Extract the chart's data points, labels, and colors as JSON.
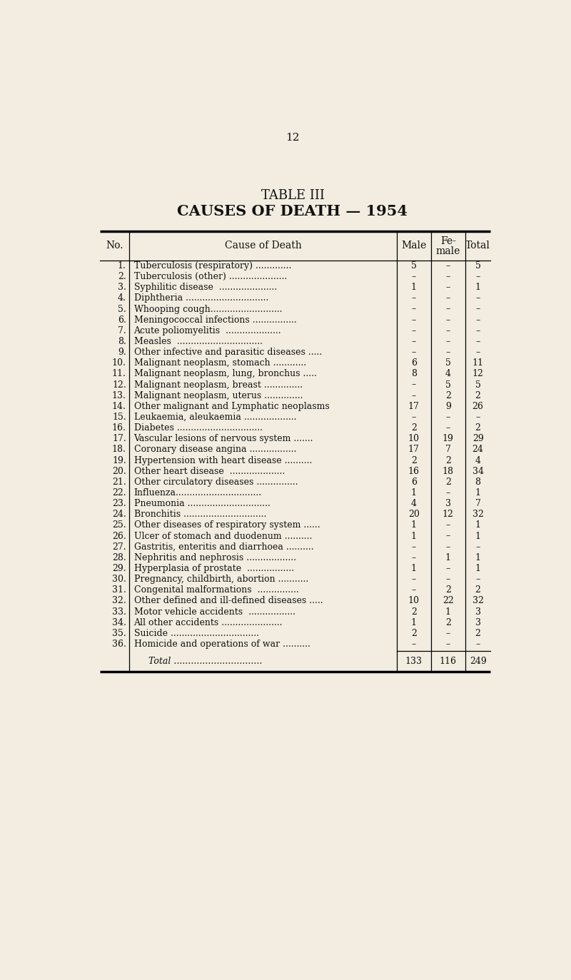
{
  "page_number": "12",
  "title_line1": "TABLE III",
  "title_line2": "CAUSES OF DEATH — 1954",
  "rows": [
    [
      "1.",
      "Tuberculosis (respiratory) .............",
      "5",
      "–",
      "5"
    ],
    [
      "2.",
      "Tuberculosis (other) .....................",
      "–",
      "–",
      "–"
    ],
    [
      "3.",
      "Syphilitic disease  .....................",
      "1",
      "–",
      "1"
    ],
    [
      "4.",
      "Diphtheria ..............................",
      "–",
      "–",
      "–"
    ],
    [
      "5.",
      "Whooping cough..........................",
      "–",
      "–",
      "–"
    ],
    [
      "6.",
      "Meningococcal infections ................",
      "–",
      "–",
      "–"
    ],
    [
      "7.",
      "Acute poliomyelitis  ....................",
      "–",
      "–",
      "–"
    ],
    [
      "8.",
      "Measles  ...............................",
      "–",
      "–",
      "–"
    ],
    [
      "9.",
      "Other infective and parasitic diseases .....",
      "–",
      "–",
      "–"
    ],
    [
      "10.",
      "Malignant neoplasm, stomach ............",
      "6",
      "5",
      "11"
    ],
    [
      "11.",
      "Malignant neoplasm, lung, bronchus .....",
      "8",
      "4",
      "12"
    ],
    [
      "12.",
      "Malignant neoplasm, breast ..............",
      "–",
      "5",
      "5"
    ],
    [
      "13.",
      "Malignant neoplasm, uterus ..............",
      "–",
      "2",
      "2"
    ],
    [
      "14.",
      "Other malignant and Lymphatic neoplasms",
      "17",
      "9",
      "26"
    ],
    [
      "15.",
      "Leukaemia, aleukaemia ...................",
      "–",
      "–",
      "–"
    ],
    [
      "16.",
      "Diabetes ...............................",
      "2",
      "–",
      "2"
    ],
    [
      "17.",
      "Vascular lesions of nervous system .......",
      "10",
      "19",
      "29"
    ],
    [
      "18.",
      "Coronary disease angina .................",
      "17",
      "7",
      "24"
    ],
    [
      "19.",
      "Hypertension with heart disease ..........",
      "2",
      "2",
      "4"
    ],
    [
      "20.",
      "Other heart disease  ....................",
      "16",
      "18",
      "34"
    ],
    [
      "21.",
      "Other circulatory diseases ...............",
      "6",
      "2",
      "8"
    ],
    [
      "22.",
      "Influenza...............................",
      "1",
      "–",
      "1"
    ],
    [
      "23.",
      "Pneumonia ..............................",
      "4",
      "3",
      "7"
    ],
    [
      "24.",
      "Bronchitis ..............................",
      "20",
      "12",
      "32"
    ],
    [
      "25.",
      "Other diseases of respiratory system ......",
      "1",
      "–",
      "1"
    ],
    [
      "26.",
      "Ulcer of stomach and duodenum ..........",
      "1",
      "–",
      "1"
    ],
    [
      "27.",
      "Gastritis, enteritis and diarrhoea ..........",
      "–",
      "–",
      "–"
    ],
    [
      "28.",
      "Nephritis and nephrosis ..................",
      "–",
      "1",
      "1"
    ],
    [
      "29.",
      "Hyperplasia of prostate  .................",
      "1",
      "–",
      "1"
    ],
    [
      "30.",
      "Pregnancy, childbirth, abortion ...........",
      "–",
      "–",
      "–"
    ],
    [
      "31.",
      "Congenital malformations  ...............",
      "–",
      "2",
      "2"
    ],
    [
      "32.",
      "Other defined and ill-defined diseases .....",
      "10",
      "22",
      "32"
    ],
    [
      "33.",
      "Motor vehicle accidents  .................",
      "2",
      "1",
      "3"
    ],
    [
      "34.",
      "All other accidents ......................",
      "1",
      "2",
      "3"
    ],
    [
      "35.",
      "Suicide ................................",
      "2",
      "–",
      "2"
    ],
    [
      "36.",
      "Homicide and operations of war ..........",
      "–",
      "–",
      "–"
    ]
  ],
  "total_label": "Total ...............................",
  "total_vals": [
    "133",
    "116",
    "249"
  ],
  "bg_color": "#f2ede0",
  "text_color": "#111111",
  "title_fontsize1": 13,
  "title_fontsize2": 15,
  "header_fontsize": 10,
  "data_fontsize": 9,
  "page_num_fontsize": 11
}
